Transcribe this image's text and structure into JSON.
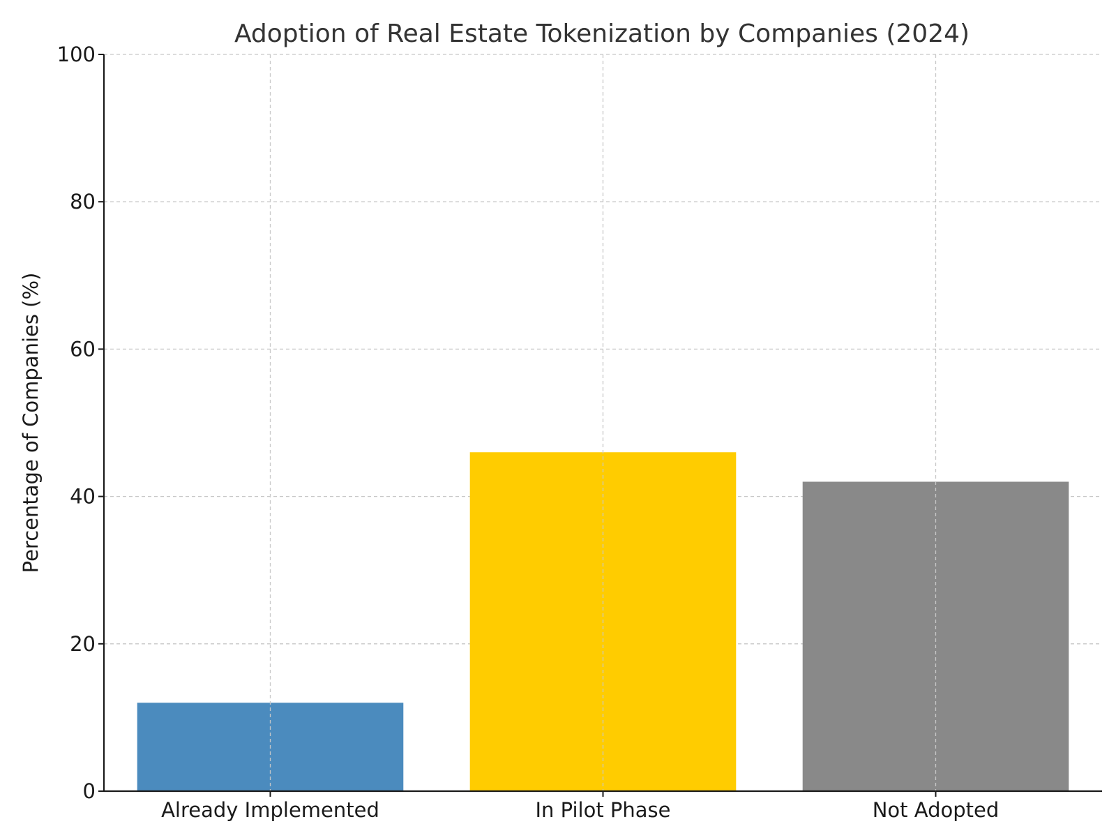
{
  "chart_data": {
    "type": "bar",
    "title": "Adoption of Real Estate Tokenization by Companies (2024)",
    "xlabel": "",
    "ylabel": "Percentage of Companies (%)",
    "categories": [
      "Already Implemented",
      "In Pilot Phase",
      "Not Adopted"
    ],
    "values": [
      12,
      46,
      42
    ],
    "colors": [
      "#4b8bbe",
      "#ffcc00",
      "#898989"
    ],
    "ylim": [
      0,
      100
    ],
    "yticks": [
      "0",
      "20",
      "40",
      "60",
      "80",
      "100"
    ],
    "grid": true,
    "legend": "none"
  }
}
